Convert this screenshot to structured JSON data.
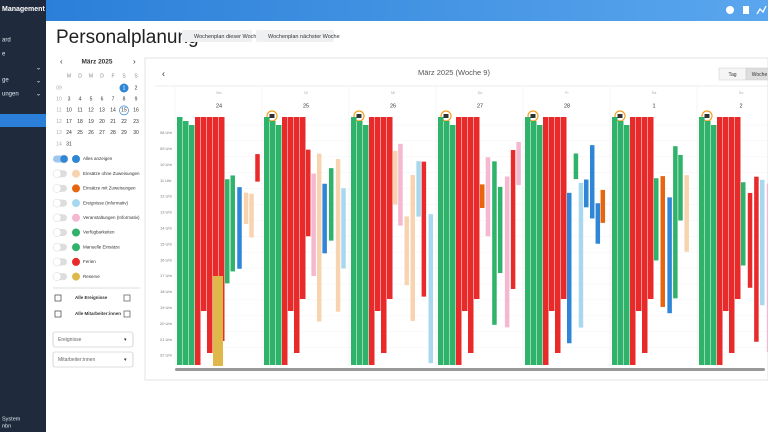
{
  "sidebar": {
    "title": "Management",
    "items": [
      "ard",
      "e",
      "ge",
      "ungen"
    ],
    "footer": [
      "System",
      "nbn"
    ]
  },
  "header": {
    "title": "Personalplanung",
    "buttons": [
      "Wochenplan dieser Woche",
      "Wochenplan nächster Woche"
    ]
  },
  "mini_calendar": {
    "month": "März 2025",
    "weekdays": [
      "M",
      "D",
      "M",
      "D",
      "F",
      "S",
      "S"
    ],
    "weeks": [
      {
        "num": "09",
        "days": [
          null,
          null,
          null,
          null,
          null,
          1,
          2
        ]
      },
      {
        "num": "10",
        "days": [
          3,
          4,
          5,
          6,
          7,
          8,
          9
        ]
      },
      {
        "num": "11",
        "days": [
          10,
          11,
          12,
          13,
          14,
          15,
          16
        ]
      },
      {
        "num": "12",
        "days": [
          17,
          18,
          19,
          20,
          21,
          22,
          23
        ]
      },
      {
        "num": "13",
        "days": [
          24,
          25,
          26,
          27,
          28,
          29,
          30
        ]
      },
      {
        "num": "14",
        "days": [
          31
        ]
      }
    ]
  },
  "filters": [
    {
      "label": "Alles anzeigen",
      "color": "#2f86d6",
      "on": true
    },
    {
      "label": "Einsätze ohne Zuweisungen",
      "color": "#f8d3b0",
      "on": false
    },
    {
      "label": "Einsätze mit Zuweisungen",
      "color": "#e8650f",
      "on": false
    },
    {
      "label": "Ereignisse (Informativ)",
      "color": "#a8d8f0",
      "on": false
    },
    {
      "label": "Veranstaltungen (Informativ)",
      "color": "#f5b8d0",
      "on": false
    },
    {
      "label": "Verfügbarkeiten",
      "color": "#2fb36b",
      "on": false
    },
    {
      "label": "Manuelle Einsätze",
      "color": "#2fb36b",
      "on": false
    },
    {
      "label": "Ferien",
      "color": "#e82a2a",
      "on": false
    },
    {
      "label": "Reserve",
      "color": "#e0b84a",
      "on": false
    }
  ],
  "checks": [
    "Alle Ereignisse",
    "Alle Mitarbeiter:innen"
  ],
  "dropdowns": [
    "Ereignisse",
    "Mitarbeiter:innen"
  ],
  "calendar": {
    "title": "März 2025 (Woche 9)",
    "views": [
      "Tag",
      "Woche"
    ],
    "days": [
      {
        "name": "Mo",
        "num": 24
      },
      {
        "name": "Di",
        "num": 25
      },
      {
        "name": "Mi",
        "num": 26
      },
      {
        "name": "Do",
        "num": 27
      },
      {
        "name": "Fr",
        "num": 28
      },
      {
        "name": "Sa",
        "num": 1
      },
      {
        "name": "So",
        "num": 2
      }
    ],
    "times": [
      "08 Uhr",
      "09 Uhr",
      "10 Uhr",
      "11 Uhr",
      "12 Uhr",
      "13 Uhr",
      "14 Uhr",
      "15 Uhr",
      "16 Uhr",
      "17 Uhr",
      "18 Uhr",
      "19 Uhr",
      "20 Uhr",
      "21 Uhr",
      "22 Uhr"
    ]
  }
}
